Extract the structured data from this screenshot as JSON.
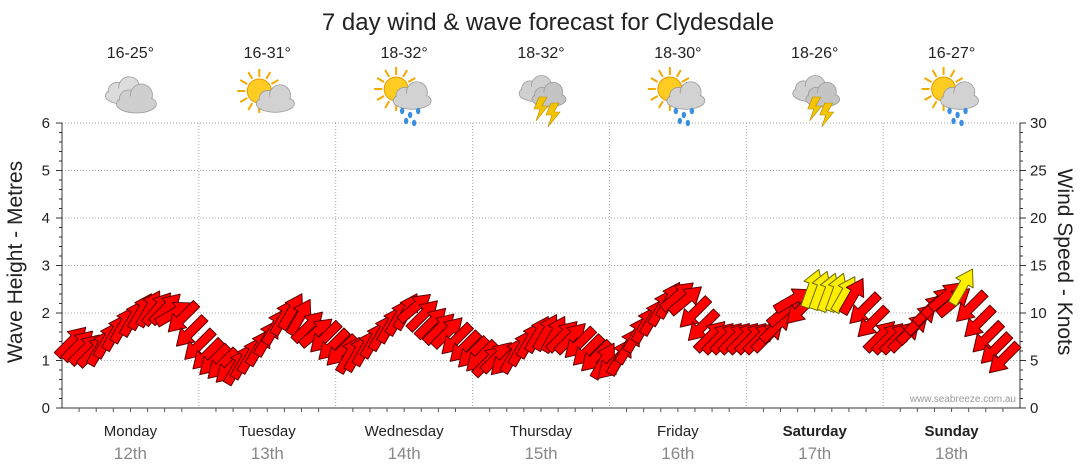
{
  "chart_data": {
    "type": "line",
    "title": "7 day wind & wave forecast for Clydesdale",
    "ylabel_left": "Wave Height - Metres",
    "ylabel_right": "Wind Speed - Knots",
    "ylim_left": [
      0,
      6
    ],
    "ylim_right": [
      0,
      30
    ],
    "yticks_left": [
      "0",
      "1",
      "2",
      "3",
      "4",
      "5",
      "6"
    ],
    "yticks_right": [
      "0",
      "5",
      "10",
      "15",
      "20",
      "25",
      "30"
    ],
    "grid": true,
    "credit": "www.seabreeze.com.au",
    "days": [
      {
        "name": "Monday",
        "date": "12th",
        "temp": "16-25°",
        "icon": "cloudy-icon",
        "bold": false
      },
      {
        "name": "Tuesday",
        "date": "13th",
        "temp": "16-31°",
        "icon": "partly-cloudy-icon",
        "bold": false
      },
      {
        "name": "Wednesday",
        "date": "14th",
        "temp": "18-32°",
        "icon": "sun-showers-icon",
        "bold": false
      },
      {
        "name": "Thursday",
        "date": "15th",
        "temp": "18-32°",
        "icon": "storm-icon",
        "bold": false
      },
      {
        "name": "Friday",
        "date": "16th",
        "temp": "18-30°",
        "icon": "sun-showers-icon",
        "bold": false
      },
      {
        "name": "Saturday",
        "date": "17th",
        "temp": "18-26°",
        "icon": "storm-icon",
        "bold": true
      },
      {
        "name": "Sunday",
        "date": "18th",
        "temp": "16-27°",
        "icon": "sun-showers-icon",
        "bold": true
      }
    ],
    "series": [
      {
        "name": "Wind Speed",
        "unit": "knots",
        "x_unit": "day index (0 = Monday 12th start)",
        "points": [
          {
            "x": 0.07,
            "y": 7.0,
            "dir": 315
          },
          {
            "x": 0.12,
            "y": 6.6,
            "dir": 315
          },
          {
            "x": 0.17,
            "y": 6.2,
            "dir": 315
          },
          {
            "x": 0.23,
            "y": 6.0,
            "dir": 315
          },
          {
            "x": 0.28,
            "y": 6.4,
            "dir": 300
          },
          {
            "x": 0.33,
            "y": 7.2,
            "dir": 300
          },
          {
            "x": 0.39,
            "y": 8.0,
            "dir": 300
          },
          {
            "x": 0.45,
            "y": 8.8,
            "dir": 300
          },
          {
            "x": 0.52,
            "y": 9.5,
            "dir": 300
          },
          {
            "x": 0.58,
            "y": 10.2,
            "dir": 300
          },
          {
            "x": 0.64,
            "y": 10.5,
            "dir": 300
          },
          {
            "x": 0.7,
            "y": 10.5,
            "dir": 310
          },
          {
            "x": 0.76,
            "y": 10.5,
            "dir": 315
          },
          {
            "x": 0.82,
            "y": 10.0,
            "dir": 330
          },
          {
            "x": 0.88,
            "y": 9.5,
            "dir": 135
          },
          {
            "x": 0.94,
            "y": 8.0,
            "dir": 135
          },
          {
            "x": 1.0,
            "y": 6.6,
            "dir": 135
          },
          {
            "x": 1.06,
            "y": 5.6,
            "dir": 135
          },
          {
            "x": 1.11,
            "y": 5.0,
            "dir": 135
          },
          {
            "x": 1.17,
            "y": 4.6,
            "dir": 135
          },
          {
            "x": 1.23,
            "y": 4.2,
            "dir": 135
          },
          {
            "x": 1.28,
            "y": 4.4,
            "dir": 300
          },
          {
            "x": 1.33,
            "y": 5.0,
            "dir": 300
          },
          {
            "x": 1.38,
            "y": 5.6,
            "dir": 300
          },
          {
            "x": 1.44,
            "y": 6.4,
            "dir": 300
          },
          {
            "x": 1.5,
            "y": 7.4,
            "dir": 300
          },
          {
            "x": 1.56,
            "y": 8.6,
            "dir": 300
          },
          {
            "x": 1.62,
            "y": 9.6,
            "dir": 300
          },
          {
            "x": 1.68,
            "y": 10.2,
            "dir": 300
          },
          {
            "x": 1.74,
            "y": 9.6,
            "dir": 300
          },
          {
            "x": 1.8,
            "y": 8.6,
            "dir": 315
          },
          {
            "x": 1.86,
            "y": 8.0,
            "dir": 320
          },
          {
            "x": 1.92,
            "y": 7.4,
            "dir": 135
          },
          {
            "x": 1.98,
            "y": 6.6,
            "dir": 135
          },
          {
            "x": 2.04,
            "y": 6.0,
            "dir": 135
          },
          {
            "x": 2.1,
            "y": 5.6,
            "dir": 300
          },
          {
            "x": 2.16,
            "y": 5.8,
            "dir": 300
          },
          {
            "x": 2.22,
            "y": 6.4,
            "dir": 300
          },
          {
            "x": 2.28,
            "y": 7.2,
            "dir": 300
          },
          {
            "x": 2.34,
            "y": 8.0,
            "dir": 300
          },
          {
            "x": 2.4,
            "y": 8.8,
            "dir": 300
          },
          {
            "x": 2.46,
            "y": 9.6,
            "dir": 300
          },
          {
            "x": 2.52,
            "y": 10.2,
            "dir": 300
          },
          {
            "x": 2.58,
            "y": 10.6,
            "dir": 320
          },
          {
            "x": 2.64,
            "y": 9.8,
            "dir": 315
          },
          {
            "x": 2.7,
            "y": 9.0,
            "dir": 315
          },
          {
            "x": 2.76,
            "y": 8.4,
            "dir": 315
          },
          {
            "x": 2.82,
            "y": 8.0,
            "dir": 315
          },
          {
            "x": 2.88,
            "y": 7.2,
            "dir": 135
          },
          {
            "x": 2.94,
            "y": 6.4,
            "dir": 135
          },
          {
            "x": 3.0,
            "y": 5.8,
            "dir": 135
          },
          {
            "x": 3.06,
            "y": 5.4,
            "dir": 135
          },
          {
            "x": 3.12,
            "y": 5.0,
            "dir": 315
          },
          {
            "x": 3.18,
            "y": 5.4,
            "dir": 315
          },
          {
            "x": 3.24,
            "y": 5.0,
            "dir": 135
          },
          {
            "x": 3.3,
            "y": 5.6,
            "dir": 300
          },
          {
            "x": 3.36,
            "y": 6.4,
            "dir": 300
          },
          {
            "x": 3.42,
            "y": 7.2,
            "dir": 300
          },
          {
            "x": 3.48,
            "y": 7.8,
            "dir": 300
          },
          {
            "x": 3.54,
            "y": 8.0,
            "dir": 300
          },
          {
            "x": 3.6,
            "y": 7.8,
            "dir": 300
          },
          {
            "x": 3.66,
            "y": 7.6,
            "dir": 315
          },
          {
            "x": 3.72,
            "y": 7.4,
            "dir": 315
          },
          {
            "x": 3.78,
            "y": 6.8,
            "dir": 135
          },
          {
            "x": 3.84,
            "y": 6.0,
            "dir": 135
          },
          {
            "x": 3.9,
            "y": 5.4,
            "dir": 135
          },
          {
            "x": 3.96,
            "y": 5.0,
            "dir": 300
          },
          {
            "x": 4.02,
            "y": 4.6,
            "dir": 135
          },
          {
            "x": 4.08,
            "y": 5.4,
            "dir": 300
          },
          {
            "x": 4.14,
            "y": 6.6,
            "dir": 300
          },
          {
            "x": 4.2,
            "y": 7.8,
            "dir": 300
          },
          {
            "x": 4.26,
            "y": 8.8,
            "dir": 300
          },
          {
            "x": 4.32,
            "y": 9.6,
            "dir": 300
          },
          {
            "x": 4.38,
            "y": 10.6,
            "dir": 300
          },
          {
            "x": 4.44,
            "y": 11.4,
            "dir": 300
          },
          {
            "x": 4.5,
            "y": 11.8,
            "dir": 320
          },
          {
            "x": 4.56,
            "y": 11.4,
            "dir": 320
          },
          {
            "x": 4.62,
            "y": 10.0,
            "dir": 135
          },
          {
            "x": 4.68,
            "y": 8.6,
            "dir": 135
          },
          {
            "x": 4.74,
            "y": 7.6,
            "dir": 315
          },
          {
            "x": 4.8,
            "y": 7.4,
            "dir": 315
          },
          {
            "x": 4.86,
            "y": 7.4,
            "dir": 315
          },
          {
            "x": 4.92,
            "y": 7.4,
            "dir": 315
          },
          {
            "x": 4.98,
            "y": 7.4,
            "dir": 315
          },
          {
            "x": 5.04,
            "y": 7.4,
            "dir": 315
          },
          {
            "x": 5.1,
            "y": 7.4,
            "dir": 315
          },
          {
            "x": 5.16,
            "y": 7.6,
            "dir": 315
          },
          {
            "x": 5.22,
            "y": 8.6,
            "dir": 315
          },
          {
            "x": 5.28,
            "y": 10.2,
            "dir": 320
          },
          {
            "x": 5.34,
            "y": 11.4,
            "dir": 330
          },
          {
            "x": 5.4,
            "y": 10.4,
            "dir": 135
          },
          {
            "x": 5.48,
            "y": 12.6,
            "dir": 290
          },
          {
            "x": 5.54,
            "y": 12.4,
            "dir": 290
          },
          {
            "x": 5.6,
            "y": 12.2,
            "dir": 290
          },
          {
            "x": 5.66,
            "y": 12.2,
            "dir": 290
          },
          {
            "x": 5.72,
            "y": 12.0,
            "dir": 300
          },
          {
            "x": 5.78,
            "y": 11.8,
            "dir": 300
          },
          {
            "x": 5.86,
            "y": 10.4,
            "dir": 135
          },
          {
            "x": 5.92,
            "y": 9.0,
            "dir": 135
          },
          {
            "x": 5.98,
            "y": 7.6,
            "dir": 315
          },
          {
            "x": 6.04,
            "y": 7.4,
            "dir": 315
          },
          {
            "x": 6.1,
            "y": 7.4,
            "dir": 315
          },
          {
            "x": 6.16,
            "y": 7.6,
            "dir": 315
          },
          {
            "x": 6.22,
            "y": 8.4,
            "dir": 315
          },
          {
            "x": 6.28,
            "y": 9.4,
            "dir": 315
          },
          {
            "x": 6.34,
            "y": 10.4,
            "dir": 315
          },
          {
            "x": 6.4,
            "y": 11.2,
            "dir": 315
          },
          {
            "x": 6.46,
            "y": 11.8,
            "dir": 320
          },
          {
            "x": 6.52,
            "y": 11.2,
            "dir": 320
          },
          {
            "x": 6.58,
            "y": 12.8,
            "dir": 300
          },
          {
            "x": 6.64,
            "y": 10.6,
            "dir": 135
          },
          {
            "x": 6.7,
            "y": 9.0,
            "dir": 135
          },
          {
            "x": 6.76,
            "y": 7.4,
            "dir": 135
          },
          {
            "x": 6.82,
            "y": 6.2,
            "dir": 135
          },
          {
            "x": 6.88,
            "y": 5.2,
            "dir": 135
          }
        ]
      }
    ]
  }
}
